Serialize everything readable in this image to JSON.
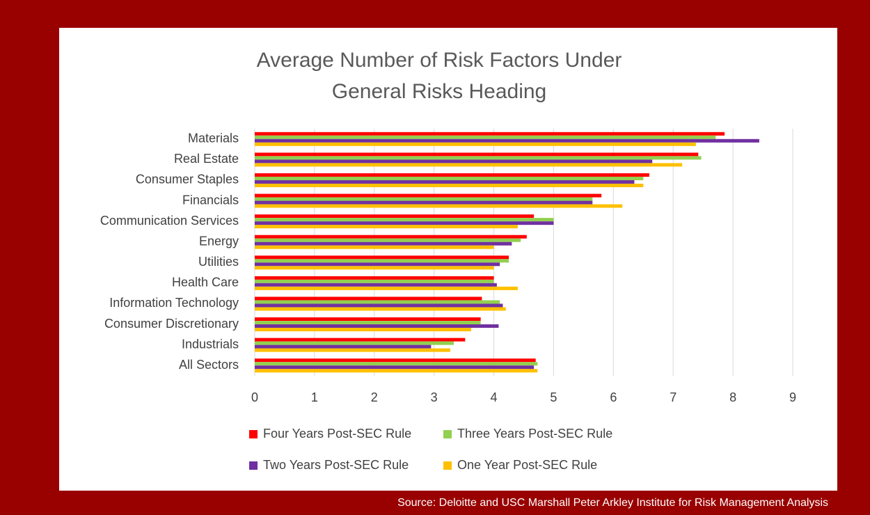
{
  "chart_data": {
    "type": "bar",
    "orientation": "horizontal",
    "title": [
      "Average Number of Risk Factors Under",
      "General Risks Heading"
    ],
    "categories": [
      "Materials",
      "Real Estate",
      "Consumer Staples",
      "Financials",
      "Communication Services",
      "Energy",
      "Utilities",
      "Health Care",
      "Information Technology",
      "Consumer Discretionary",
      "Industrials",
      "All Sectors"
    ],
    "series": [
      {
        "name": "Four Years Post-SEC Rule",
        "color": "#ff0000",
        "values": [
          7.86,
          7.42,
          6.6,
          5.8,
          4.67,
          4.55,
          4.25,
          4.0,
          3.8,
          3.78,
          3.52,
          4.7
        ]
      },
      {
        "name": "Three Years Post-SEC Rule",
        "color": "#92d050",
        "values": [
          7.71,
          7.47,
          6.5,
          5.65,
          5.0,
          4.45,
          4.25,
          4.0,
          4.1,
          3.78,
          3.33,
          4.73
        ]
      },
      {
        "name": "Two Years Post-SEC Rule",
        "color": "#7030a0",
        "values": [
          8.44,
          6.65,
          6.35,
          5.65,
          5.0,
          4.3,
          4.1,
          4.05,
          4.15,
          4.08,
          2.95,
          4.67
        ]
      },
      {
        "name": "One Year Post-SEC Rule",
        "color": "#ffc000",
        "values": [
          7.38,
          7.15,
          6.5,
          6.15,
          4.4,
          4.0,
          4.0,
          4.4,
          4.2,
          3.62,
          3.27,
          4.73
        ]
      }
    ],
    "xlim": [
      0,
      9
    ],
    "xticks": [
      0,
      1,
      2,
      3,
      4,
      5,
      6,
      7,
      8,
      9
    ],
    "grid": true,
    "legend": "bottom",
    "source": "Source: Deloitte and USC Marshall Peter Arkley Institute for Risk Management Analysis"
  }
}
